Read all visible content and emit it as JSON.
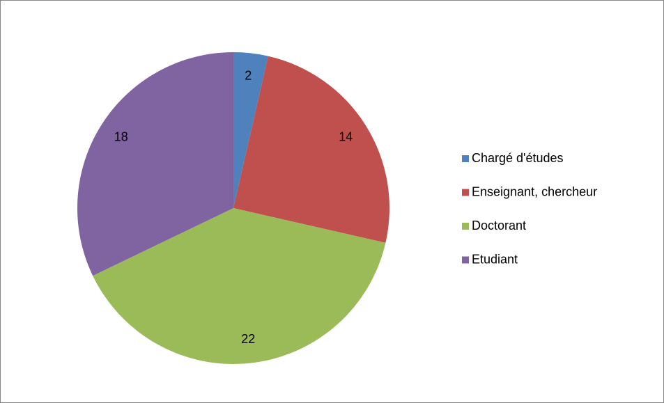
{
  "chart_data": {
    "type": "pie",
    "categories": [
      "Chargé d'études",
      "Enseignant, chercheur",
      "Doctorant",
      "Etudiant"
    ],
    "values": [
      2,
      14,
      22,
      18
    ],
    "colors": [
      "#4f81bd",
      "#c0504d",
      "#9bbb59",
      "#8064a2"
    ],
    "legend": "right"
  }
}
